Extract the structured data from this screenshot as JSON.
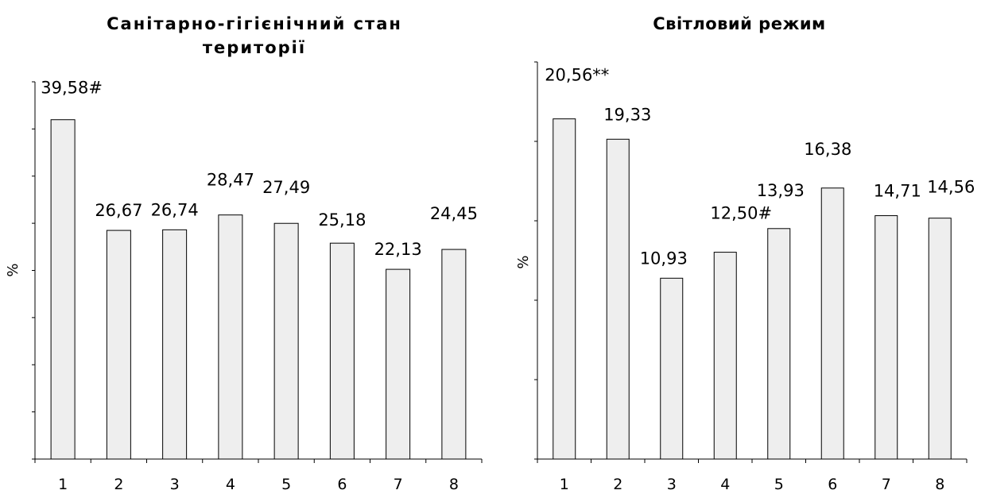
{
  "chart_data": [
    {
      "type": "bar",
      "title": "Санітарно-гігієнічний стан території",
      "title_lines": [
        "Санітарно-гігієнічний стан",
        "території"
      ],
      "ylabel": "%",
      "categories": [
        "1",
        "2",
        "3",
        "4",
        "5",
        "6",
        "7",
        "8"
      ],
      "values": [
        39.58,
        26.67,
        26.74,
        28.47,
        27.49,
        25.18,
        22.13,
        24.45
      ],
      "value_labels": [
        "39,58#",
        "26,67",
        "26,74",
        "28,47",
        "27,49",
        "25,18",
        "22,13",
        "24,45"
      ],
      "ylim": [
        0,
        44
      ],
      "y_ticks": 8,
      "bar_color": "#eeeeee",
      "grid": false
    },
    {
      "type": "bar",
      "title": "Світловий режим",
      "title_lines": [
        "Світловий режим"
      ],
      "ylabel": "%",
      "categories": [
        "1",
        "2",
        "3",
        "4",
        "5",
        "6",
        "7",
        "8"
      ],
      "values": [
        20.56,
        19.33,
        10.93,
        12.5,
        13.93,
        16.38,
        14.71,
        14.56
      ],
      "value_labels": [
        "20,56**",
        "19,33",
        "10,93",
        "12,50#",
        "13,93",
        "16,38",
        "14,71",
        "14,56"
      ],
      "ylim": [
        0,
        24
      ],
      "y_ticks": 5,
      "bar_color": "#eeeeee",
      "grid": false
    }
  ]
}
